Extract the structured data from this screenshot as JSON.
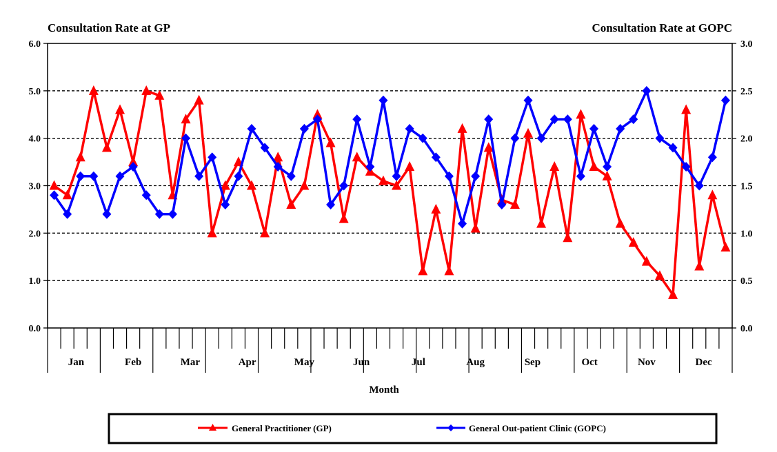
{
  "chart_data": {
    "type": "line",
    "left_axis_title": "Consultation Rate at GP",
    "right_axis_title": "Consultation Rate at GOPC",
    "xlabel": "Month",
    "months": [
      "Jan",
      "Feb",
      "Mar",
      "Apr",
      "May",
      "Jun",
      "Jul",
      "Aug",
      "Sep",
      "Oct",
      "Nov",
      "Dec"
    ],
    "left_axis": {
      "min": 0,
      "max": 6,
      "ticks": [
        "0.0",
        "1.0",
        "2.0",
        "3.0",
        "4.0",
        "5.0",
        "6.0"
      ]
    },
    "right_axis": {
      "min": 0,
      "max": 3,
      "ticks": [
        "0.0",
        "0.5",
        "1.0",
        "1.5",
        "2.0",
        "2.5",
        "3.0"
      ]
    },
    "grid": "dashed horizontal",
    "legend_position": "bottom",
    "series": [
      {
        "name": "General Practitioner (GP)",
        "axis": "left",
        "color": "#ff0000",
        "marker": "triangle",
        "values": [
          3.0,
          2.8,
          3.6,
          5.0,
          3.8,
          4.6,
          3.5,
          5.0,
          4.9,
          2.8,
          4.4,
          4.8,
          2.0,
          3.0,
          3.5,
          3.0,
          2.0,
          3.6,
          2.6,
          3.0,
          4.5,
          3.9,
          2.3,
          3.6,
          3.3,
          3.1,
          3.0,
          3.4,
          1.2,
          2.5,
          1.2,
          4.2,
          2.1,
          3.8,
          2.7,
          2.6,
          4.1,
          2.2,
          3.4,
          1.9,
          4.5,
          3.4,
          3.2,
          2.2,
          1.8,
          1.4,
          1.1,
          0.7,
          4.6,
          1.3,
          2.8,
          1.7
        ]
      },
      {
        "name": "General Out-patient Clinic (GOPC)",
        "axis": "right",
        "color": "#0000ff",
        "marker": "diamond",
        "values": [
          1.4,
          1.2,
          1.6,
          1.6,
          1.2,
          1.6,
          1.7,
          1.4,
          1.2,
          1.2,
          2.0,
          1.6,
          1.8,
          1.3,
          1.6,
          2.1,
          1.9,
          1.7,
          1.6,
          2.1,
          2.2,
          1.3,
          1.5,
          2.2,
          1.7,
          2.4,
          1.6,
          2.1,
          2.0,
          1.8,
          1.6,
          1.1,
          1.6,
          2.2,
          1.3,
          2.0,
          2.4,
          2.0,
          2.2,
          2.2,
          1.6,
          2.1,
          1.7,
          2.1,
          2.2,
          2.5,
          2.0,
          1.9,
          1.7,
          1.5,
          1.8,
          2.4
        ]
      }
    ]
  }
}
